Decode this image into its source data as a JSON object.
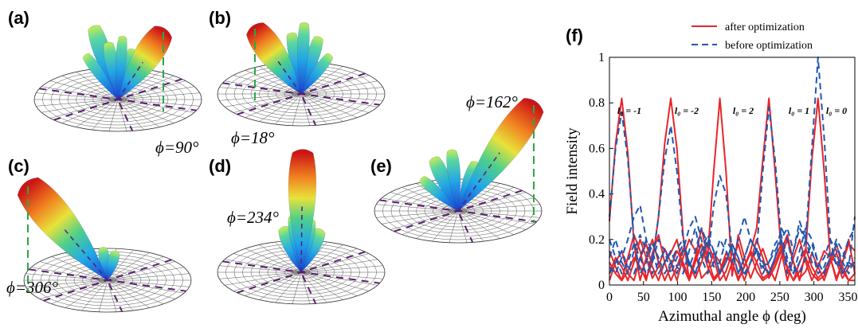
{
  "panels": [
    {
      "label": "(a)",
      "angle": "ϕ=90°"
    },
    {
      "label": "(b)",
      "angle": "ϕ=18°"
    },
    {
      "label": "(c)",
      "angle": "ϕ=306°"
    },
    {
      "label": "(d)",
      "angle": "ϕ=234°"
    },
    {
      "label": "(e)",
      "angle": "ϕ=162°"
    }
  ],
  "chart_data": {
    "type": "line",
    "panel_label": "(f)",
    "x_label": "Azimuthal angle ϕ (deg)",
    "y_label": "Field intensity",
    "annotations": [
      "l₀ = -1",
      "l₀ = -2",
      "l₀ = 2",
      "l₀ = 1",
      "l₀ = 0"
    ],
    "x": [
      0,
      9,
      18,
      27,
      36,
      45,
      54,
      63,
      72,
      81,
      90,
      99,
      108,
      117,
      126,
      135,
      144,
      153,
      162,
      171,
      180,
      189,
      198,
      207,
      216,
      225,
      234,
      243,
      252,
      261,
      270,
      279,
      288,
      297,
      306,
      315,
      324,
      333,
      342,
      351,
      360
    ],
    "xlim": [
      0,
      360
    ],
    "xticks": [
      0,
      50,
      100,
      150,
      200,
      250,
      300,
      350
    ],
    "ylim": [
      0,
      1
    ],
    "yticks": [
      0,
      0.2,
      0.4,
      0.6,
      0.8,
      1
    ],
    "series": [
      {
        "name": "after optimization",
        "color": "#e8262a",
        "style": "solid",
        "values": [
          0.28,
          0.62,
          0.82,
          0.58,
          0.18,
          0.02,
          0.12,
          0.2,
          0.1,
          0.02,
          0.08,
          0.15,
          0.1,
          0.03,
          0.12,
          0.18,
          0.08,
          0.02,
          0.05,
          0.12,
          0.1,
          0.03,
          0.08,
          0.14,
          0.06,
          0.02,
          0.04,
          0.1,
          0.16,
          0.08,
          0.02,
          0.06,
          0.12,
          0.05,
          0.02,
          0.04,
          0.1,
          0.14,
          0.06,
          0.02,
          0.05
        ]
      },
      {
        "name": "after optimization",
        "color": "#e8262a",
        "style": "solid",
        "values": [
          0.1,
          0.05,
          0.02,
          0.12,
          0.22,
          0.15,
          0.03,
          0.1,
          0.3,
          0.62,
          0.82,
          0.6,
          0.22,
          0.02,
          0.1,
          0.18,
          0.12,
          0.03,
          0.06,
          0.14,
          0.1,
          0.02,
          0.08,
          0.15,
          0.1,
          0.03,
          0.05,
          0.12,
          0.18,
          0.07,
          0.02,
          0.1,
          0.16,
          0.08,
          0.03,
          0.06,
          0.12,
          0.1,
          0.03,
          0.08,
          0.1
        ]
      },
      {
        "name": "after optimization",
        "color": "#e8262a",
        "style": "solid",
        "values": [
          0.02,
          0.1,
          0.15,
          0.05,
          0.02,
          0.12,
          0.18,
          0.08,
          0.02,
          0.1,
          0.14,
          0.2,
          0.08,
          0.02,
          0.12,
          0.25,
          0.12,
          0.5,
          0.82,
          0.5,
          0.04,
          0.22,
          0.12,
          0.03,
          0.1,
          0.16,
          0.08,
          0.02,
          0.12,
          0.2,
          0.1,
          0.03,
          0.06,
          0.14,
          0.08,
          0.02,
          0.1,
          0.18,
          0.08,
          0.02,
          0.02
        ]
      },
      {
        "name": "after optimization",
        "color": "#e8262a",
        "style": "solid",
        "values": [
          0.05,
          0.12,
          0.08,
          0.02,
          0.1,
          0.2,
          0.12,
          0.03,
          0.08,
          0.16,
          0.1,
          0.02,
          0.12,
          0.2,
          0.15,
          0.03,
          0.06,
          0.14,
          0.1,
          0.02,
          0.1,
          0.18,
          0.08,
          0.15,
          0.25,
          0.55,
          0.82,
          0.5,
          0.15,
          0.02,
          0.12,
          0.2,
          0.1,
          0.02,
          0.08,
          0.15,
          0.12,
          0.03,
          0.1,
          0.2,
          0.05
        ]
      },
      {
        "name": "after optimization",
        "color": "#e8262a",
        "style": "solid",
        "values": [
          0.15,
          0.08,
          0.02,
          0.06,
          0.12,
          0.08,
          0.02,
          0.14,
          0.22,
          0.1,
          0.02,
          0.08,
          0.16,
          0.1,
          0.03,
          0.1,
          0.18,
          0.12,
          0.02,
          0.06,
          0.14,
          0.1,
          0.02,
          0.1,
          0.2,
          0.12,
          0.03,
          0.08,
          0.15,
          0.22,
          0.1,
          0.02,
          0.15,
          0.55,
          0.82,
          0.5,
          0.12,
          0.02,
          0.1,
          0.18,
          0.15
        ]
      },
      {
        "name": "before optimization",
        "color": "#1f57b0",
        "style": "dashed",
        "values": [
          0.3,
          0.6,
          0.76,
          0.55,
          0.2,
          0.05,
          0.1,
          0.18,
          0.12,
          0.05,
          0.1,
          0.16,
          0.2,
          0.1,
          0.05,
          0.12,
          0.2,
          0.15,
          0.05,
          0.1,
          0.18,
          0.12,
          0.04,
          0.1,
          0.16,
          0.1,
          0.05,
          0.12,
          0.25,
          0.2,
          0.08,
          0.05,
          0.12,
          0.18,
          0.1,
          0.05,
          0.12,
          0.2,
          0.15,
          0.08,
          0.3
        ]
      },
      {
        "name": "before optimization",
        "color": "#1f57b0",
        "style": "dashed",
        "values": [
          0.08,
          0.05,
          0.12,
          0.2,
          0.3,
          0.35,
          0.2,
          0.1,
          0.3,
          0.55,
          0.7,
          0.5,
          0.2,
          0.08,
          0.15,
          0.25,
          0.18,
          0.08,
          0.1,
          0.2,
          0.15,
          0.05,
          0.12,
          0.2,
          0.15,
          0.05,
          0.1,
          0.18,
          0.22,
          0.12,
          0.05,
          0.1,
          0.2,
          0.15,
          0.05,
          0.08,
          0.15,
          0.12,
          0.05,
          0.1,
          0.08
        ]
      },
      {
        "name": "before optimization",
        "color": "#1f57b0",
        "style": "dashed",
        "values": [
          0.12,
          0.2,
          0.1,
          0.05,
          0.15,
          0.22,
          0.15,
          0.05,
          0.1,
          0.15,
          0.1,
          0.05,
          0.15,
          0.25,
          0.3,
          0.2,
          0.1,
          0.35,
          0.48,
          0.4,
          0.15,
          0.05,
          0.12,
          0.2,
          0.15,
          0.08,
          0.1,
          0.15,
          0.2,
          0.1,
          0.05,
          0.15,
          0.25,
          0.2,
          0.1,
          0.05,
          0.12,
          0.18,
          0.1,
          0.05,
          0.12
        ]
      },
      {
        "name": "before optimization",
        "color": "#1f57b0",
        "style": "dashed",
        "values": [
          0.05,
          0.1,
          0.15,
          0.08,
          0.05,
          0.12,
          0.2,
          0.15,
          0.05,
          0.1,
          0.15,
          0.08,
          0.05,
          0.15,
          0.25,
          0.12,
          0.05,
          0.1,
          0.2,
          0.15,
          0.1,
          0.2,
          0.3,
          0.2,
          0.15,
          0.5,
          0.78,
          0.55,
          0.2,
          0.05,
          0.15,
          0.25,
          0.2,
          0.1,
          0.08,
          0.12,
          0.2,
          0.15,
          0.05,
          0.1,
          0.08
        ]
      },
      {
        "name": "before optimization",
        "color": "#1f57b0",
        "style": "dashed",
        "values": [
          0.2,
          0.12,
          0.05,
          0.1,
          0.18,
          0.12,
          0.05,
          0.1,
          0.2,
          0.15,
          0.05,
          0.12,
          0.18,
          0.1,
          0.05,
          0.15,
          0.22,
          0.15,
          0.05,
          0.1,
          0.18,
          0.12,
          0.05,
          0.1,
          0.15,
          0.08,
          0.05,
          0.12,
          0.2,
          0.25,
          0.15,
          0.28,
          0.2,
          0.6,
          1.0,
          0.65,
          0.2,
          0.08,
          0.12,
          0.2,
          0.25
        ]
      }
    ]
  }
}
